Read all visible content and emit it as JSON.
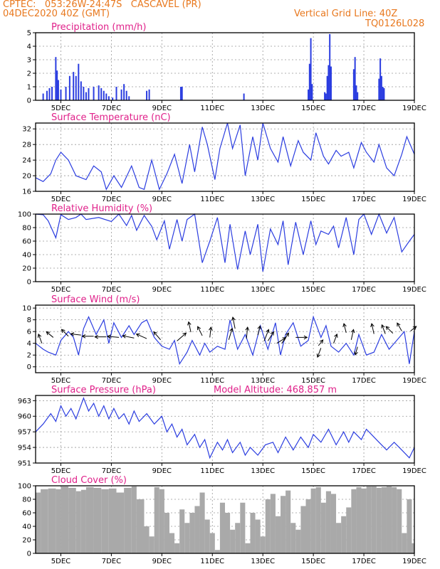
{
  "header": {
    "line1": "CPTEC:   053:26W-24:47S   CASCAVEL (PR)",
    "line2": "04DEC2020 40Z (GMT)",
    "grid_note": "Vertical Grid Line: 40Z",
    "run_id": "TQ0126L028"
  },
  "colors": {
    "series": "#2b3de0",
    "bars": "#2b3de0",
    "cloud": "#a9a9a9",
    "title": "#e0218a",
    "header": "#e8781e"
  },
  "chart_data": [
    {
      "id": "precip",
      "type": "bar",
      "title": "Precipitation (mm/h)",
      "ylim": [
        0,
        5
      ],
      "yticks": [
        0,
        1,
        2,
        3,
        4,
        5
      ],
      "xticks": [
        "5DEC",
        "7DEC",
        "9DEC",
        "11DEC",
        "13DEC",
        "15DEC",
        "17DEC",
        "19DEC"
      ],
      "x_day_range": [
        4.0,
        19.0
      ],
      "x": [
        4.3,
        4.45,
        4.55,
        4.65,
        4.8,
        4.85,
        4.9,
        5.0,
        5.2,
        5.35,
        5.5,
        5.6,
        5.7,
        5.8,
        5.9,
        6.0,
        6.1,
        6.3,
        6.5,
        6.6,
        6.7,
        6.8,
        6.9,
        7.05,
        7.2,
        7.4,
        7.5,
        7.6,
        7.7,
        8.4,
        8.5,
        9.75,
        9.8,
        12.25,
        14.8,
        14.85,
        14.9,
        14.95,
        15.45,
        15.5,
        15.55,
        15.6,
        15.65,
        15.7,
        16.6,
        16.65,
        16.7,
        16.75,
        17.6,
        17.65,
        17.7,
        17.75,
        17.8
      ],
      "values": [
        0.5,
        0.7,
        0.9,
        1.0,
        3.2,
        2.2,
        1.5,
        0.8,
        1.0,
        1.8,
        2.1,
        1.8,
        2.7,
        1.4,
        1.0,
        0.6,
        0.9,
        1.0,
        1.1,
        0.9,
        0.7,
        0.5,
        0.3,
        0.2,
        1.0,
        0.8,
        1.2,
        0.7,
        0.3,
        0.7,
        0.8,
        1.0,
        1.0,
        0.5,
        0.8,
        2.7,
        4.6,
        1.2,
        0.6,
        0.5,
        1.8,
        2.6,
        4.9,
        2.5,
        2.3,
        3.2,
        1.1,
        0.6,
        1.6,
        3.1,
        1.8,
        1.0,
        0.9
      ]
    },
    {
      "id": "temp",
      "type": "line",
      "title": "Surface Temperature (nC)",
      "ylim": [
        16,
        33.5
      ],
      "yticks": [
        16,
        20,
        24,
        28,
        32
      ],
      "xticks": [
        "5DEC",
        "7DEC",
        "9DEC",
        "11DEC",
        "13DEC",
        "15DEC",
        "17DEC",
        "19DEC"
      ],
      "x_day_range": [
        4.0,
        19.0
      ],
      "x": [
        4.0,
        4.3,
        4.6,
        4.8,
        5.0,
        5.3,
        5.6,
        6.0,
        6.3,
        6.6,
        6.8,
        7.1,
        7.4,
        7.8,
        8.1,
        8.3,
        8.6,
        8.9,
        9.2,
        9.5,
        9.8,
        10.1,
        10.3,
        10.6,
        10.8,
        11.1,
        11.3,
        11.6,
        11.8,
        12.1,
        12.3,
        12.6,
        12.8,
        13.0,
        13.3,
        13.6,
        13.8,
        14.1,
        14.4,
        14.6,
        14.9,
        15.1,
        15.4,
        15.6,
        15.9,
        16.1,
        16.4,
        16.6,
        16.9,
        17.1,
        17.4,
        17.6,
        17.9,
        18.2,
        18.5,
        18.7,
        19.0
      ],
      "values": [
        19.5,
        18.5,
        20.5,
        24.0,
        26.0,
        24.0,
        20.0,
        19.0,
        22.5,
        21.0,
        16.5,
        20.0,
        17.0,
        22.5,
        17.0,
        16.5,
        24.0,
        16.5,
        20.5,
        25.5,
        18.0,
        28.0,
        21.0,
        32.5,
        28.0,
        19.0,
        27.0,
        33.5,
        27.0,
        33.0,
        20.0,
        30.0,
        24.0,
        33.5,
        27.0,
        23.5,
        30.0,
        22.5,
        29.0,
        26.0,
        24.0,
        31.0,
        25.0,
        23.0,
        26.5,
        25.0,
        26.0,
        22.0,
        28.5,
        26.0,
        23.5,
        28.0,
        22.0,
        20.0,
        25.5,
        30.0,
        25.5
      ]
    },
    {
      "id": "rh",
      "type": "line",
      "title": "Relative Humidity (%)",
      "ylim": [
        0,
        100
      ],
      "yticks": [
        0,
        20,
        40,
        60,
        80,
        100
      ],
      "xticks": [
        "5DEC",
        "7DEC",
        "9DEC",
        "11DEC",
        "13DEC",
        "15DEC",
        "17DEC",
        "19DEC"
      ],
      "x_day_range": [
        4.0,
        19.0
      ],
      "x": [
        4.0,
        4.3,
        4.5,
        4.8,
        5.0,
        5.3,
        5.6,
        5.8,
        6.0,
        6.5,
        7.0,
        7.3,
        7.6,
        7.8,
        8.0,
        8.3,
        8.6,
        8.8,
        9.1,
        9.3,
        9.6,
        9.8,
        10.0,
        10.3,
        10.6,
        10.9,
        11.2,
        11.5,
        11.7,
        12.0,
        12.3,
        12.5,
        12.8,
        13.0,
        13.3,
        13.6,
        13.8,
        14.0,
        14.3,
        14.6,
        14.9,
        15.1,
        15.3,
        15.6,
        15.8,
        16.0,
        16.3,
        16.6,
        16.8,
        17.0,
        17.3,
        17.6,
        17.9,
        18.2,
        18.5,
        18.8,
        19.0
      ],
      "values": [
        100,
        99,
        90,
        65,
        99,
        92,
        95,
        100,
        92,
        95,
        89,
        100,
        83,
        98,
        76,
        98,
        82,
        62,
        90,
        48,
        92,
        60,
        92,
        100,
        28,
        60,
        95,
        28,
        85,
        18,
        75,
        40,
        85,
        15,
        78,
        55,
        90,
        25,
        88,
        40,
        90,
        55,
        75,
        70,
        82,
        50,
        95,
        40,
        92,
        100,
        70,
        100,
        72,
        95,
        44,
        60,
        70
      ]
    },
    {
      "id": "wind",
      "type": "line",
      "title": "Surface Wind (m/s)",
      "ylim": [
        -1,
        10.5
      ],
      "yticks": [
        0,
        2,
        4,
        6,
        8,
        10
      ],
      "xticks": [
        "5DEC",
        "7DEC",
        "9DEC",
        "11DEC",
        "13DEC",
        "15DEC",
        "17DEC",
        "19DEC"
      ],
      "x_day_range": [
        4.0,
        19.0
      ],
      "x": [
        4.0,
        4.3,
        4.5,
        4.8,
        5.0,
        5.3,
        5.5,
        5.7,
        5.9,
        6.1,
        6.4,
        6.7,
        6.9,
        7.1,
        7.4,
        7.7,
        7.9,
        8.2,
        8.4,
        8.7,
        9.0,
        9.3,
        9.5,
        9.7,
        10.0,
        10.2,
        10.5,
        10.7,
        10.9,
        11.2,
        11.5,
        11.7,
        12.0,
        12.3,
        12.6,
        12.9,
        13.2,
        13.5,
        13.7,
        13.9,
        14.2,
        14.5,
        14.8,
        15.0,
        15.3,
        15.5,
        15.7,
        16.0,
        16.3,
        16.6,
        16.8,
        17.1,
        17.4,
        17.7,
        18.0,
        18.3,
        18.6,
        18.8,
        19.0
      ],
      "values": [
        4.0,
        3.0,
        2.5,
        2.0,
        4.5,
        6.0,
        5.0,
        2.0,
        6.5,
        8.5,
        5.5,
        8.0,
        4.0,
        7.5,
        5.0,
        7.0,
        5.5,
        7.5,
        8.0,
        5.0,
        3.5,
        3.0,
        4.5,
        0.5,
        2.5,
        4.5,
        2.0,
        4.0,
        2.5,
        3.5,
        3.0,
        8.0,
        3.0,
        5.5,
        2.0,
        7.0,
        3.0,
        7.5,
        2.0,
        5.5,
        7.5,
        3.5,
        4.5,
        8.5,
        5.0,
        7.0,
        3.5,
        2.5,
        4.0,
        2.0,
        5.5,
        2.0,
        2.5,
        5.5,
        3.0,
        4.5,
        6.0,
        0.5,
        6.0
      ],
      "arrows": [
        [
          4.25,
          4.0,
          -0.3,
          0.8
        ],
        [
          4.7,
          5.0,
          -0.6,
          0.5
        ],
        [
          5.3,
          5.2,
          -0.6,
          0.6
        ],
        [
          5.8,
          5.4,
          -0.9,
          0.1
        ],
        [
          6.3,
          5.2,
          -1.0,
          0.0
        ],
        [
          6.8,
          5.1,
          -1.0,
          0.0
        ],
        [
          7.3,
          5.0,
          -1.0,
          0.1
        ],
        [
          7.9,
          4.9,
          -1.0,
          0.2
        ],
        [
          8.4,
          4.8,
          -0.9,
          0.4
        ],
        [
          8.95,
          4.6,
          -0.6,
          0.7
        ],
        [
          9.6,
          4.4,
          0.8,
          0.7
        ],
        [
          10.15,
          5.9,
          -0.2,
          0.9
        ],
        [
          10.6,
          5.3,
          -0.4,
          0.8
        ],
        [
          10.9,
          5.0,
          0.1,
          0.9
        ],
        [
          11.65,
          4.6,
          0.3,
          1.0
        ],
        [
          11.9,
          6.5,
          -0.2,
          1.0
        ],
        [
          12.35,
          4.8,
          0.1,
          1.0
        ],
        [
          12.8,
          5.4,
          0.2,
          0.8
        ],
        [
          13.05,
          4.4,
          0.4,
          1.0
        ],
        [
          13.2,
          4.4,
          0.5,
          0.8
        ],
        [
          13.55,
          4.0,
          0.8,
          0.5
        ],
        [
          13.75,
          4.0,
          0.6,
          0.9
        ],
        [
          14.3,
          5.0,
          1.0,
          0.0
        ],
        [
          15.2,
          3.6,
          0.4,
          0.5
        ],
        [
          15.3,
          3.2,
          -0.3,
          -0.8
        ],
        [
          15.8,
          4.0,
          0.3,
          0.8
        ],
        [
          16.3,
          5.8,
          -0.2,
          0.8
        ],
        [
          16.5,
          4.6,
          0.2,
          0.9
        ],
        [
          16.75,
          3.4,
          -0.2,
          -0.7
        ],
        [
          17.4,
          5.6,
          -0.2,
          0.9
        ],
        [
          17.85,
          5.6,
          -0.3,
          0.8
        ],
        [
          18.15,
          5.7,
          -0.6,
          0.6
        ],
        [
          18.5,
          6.1,
          -0.4,
          0.7
        ],
        [
          18.85,
          6.1,
          0.5,
          0.4
        ]
      ]
    },
    {
      "id": "pres",
      "type": "line",
      "title": "Surface Pressure (hPa)",
      "subtitle": "Model Altitude: 468.857  m",
      "ylim": [
        951,
        964
      ],
      "yticks": [
        951,
        954,
        957,
        960,
        963
      ],
      "xticks": [
        "5DEC",
        "7DEC",
        "9DEC",
        "11DEC",
        "13DEC",
        "15DEC",
        "17DEC",
        "19DEC"
      ],
      "x_day_range": [
        4.0,
        19.0
      ],
      "x": [
        4.0,
        4.3,
        4.6,
        4.8,
        5.0,
        5.2,
        5.4,
        5.6,
        5.9,
        6.1,
        6.3,
        6.5,
        6.7,
        6.9,
        7.1,
        7.3,
        7.5,
        7.7,
        7.9,
        8.1,
        8.4,
        8.7,
        9.0,
        9.2,
        9.4,
        9.6,
        9.8,
        10.0,
        10.3,
        10.5,
        10.7,
        10.9,
        11.2,
        11.4,
        11.6,
        11.8,
        12.1,
        12.3,
        12.5,
        12.8,
        13.1,
        13.4,
        13.6,
        13.9,
        14.2,
        14.5,
        14.8,
        15.0,
        15.3,
        15.6,
        15.9,
        16.2,
        16.4,
        16.6,
        16.9,
        17.1,
        17.3,
        17.6,
        17.9,
        18.2,
        18.5,
        18.8,
        19.0
      ],
      "values": [
        957.0,
        958.5,
        960.5,
        959.0,
        962.0,
        960.0,
        961.5,
        959.5,
        963.5,
        961.0,
        962.5,
        960.0,
        962.0,
        959.5,
        961.5,
        959.5,
        960.5,
        958.5,
        961.0,
        959.0,
        960.5,
        958.5,
        960.0,
        957.0,
        958.5,
        956.0,
        957.5,
        954.5,
        956.5,
        954.0,
        955.5,
        952.0,
        955.0,
        953.5,
        955.5,
        953.0,
        955.0,
        952.5,
        954.0,
        952.5,
        954.5,
        955.0,
        953.0,
        956.0,
        953.5,
        956.0,
        954.0,
        956.5,
        955.0,
        957.5,
        954.5,
        957.0,
        955.0,
        957.0,
        955.5,
        957.5,
        956.5,
        955.0,
        953.5,
        955.0,
        953.5,
        952.0,
        954.0
      ]
    },
    {
      "id": "cloud",
      "type": "area",
      "title": "Cloud Cover (%)",
      "ylim": [
        0,
        100
      ],
      "yticks": [
        0,
        20,
        40,
        60,
        80,
        100
      ],
      "xticks": [
        "5DEC",
        "7DEC",
        "9DEC",
        "11DEC",
        "13DEC",
        "15DEC",
        "17DEC",
        "19DEC"
      ],
      "x_day_range": [
        4.0,
        19.0
      ],
      "x": [
        4.0,
        4.2,
        4.5,
        4.8,
        5.0,
        5.3,
        5.6,
        5.8,
        6.0,
        6.3,
        6.6,
        6.9,
        7.2,
        7.5,
        7.8,
        8.0,
        8.3,
        8.5,
        8.7,
        8.9,
        9.1,
        9.3,
        9.5,
        9.7,
        9.9,
        10.1,
        10.3,
        10.5,
        10.7,
        10.9,
        11.1,
        11.3,
        11.5,
        11.7,
        11.9,
        12.1,
        12.3,
        12.5,
        12.7,
        12.9,
        13.1,
        13.3,
        13.5,
        13.7,
        13.9,
        14.1,
        14.3,
        14.5,
        14.7,
        14.9,
        15.1,
        15.3,
        15.5,
        15.7,
        15.9,
        16.1,
        16.3,
        16.5,
        16.7,
        16.9,
        17.1,
        17.3,
        17.5,
        17.7,
        17.9,
        18.1,
        18.3,
        18.5,
        18.7,
        18.9,
        19.0
      ],
      "values": [
        90,
        95,
        96,
        95,
        99,
        97,
        92,
        94,
        98,
        97,
        95,
        96,
        90,
        97,
        99,
        80,
        40,
        25,
        98,
        95,
        60,
        30,
        15,
        65,
        45,
        60,
        70,
        90,
        50,
        30,
        5,
        75,
        60,
        35,
        45,
        75,
        15,
        60,
        50,
        25,
        80,
        88,
        55,
        85,
        93,
        45,
        35,
        70,
        80,
        96,
        98,
        75,
        92,
        88,
        45,
        55,
        68,
        95,
        98,
        96,
        99,
        99,
        97,
        98,
        99,
        98,
        95,
        30,
        80,
        15,
        20
      ]
    }
  ]
}
